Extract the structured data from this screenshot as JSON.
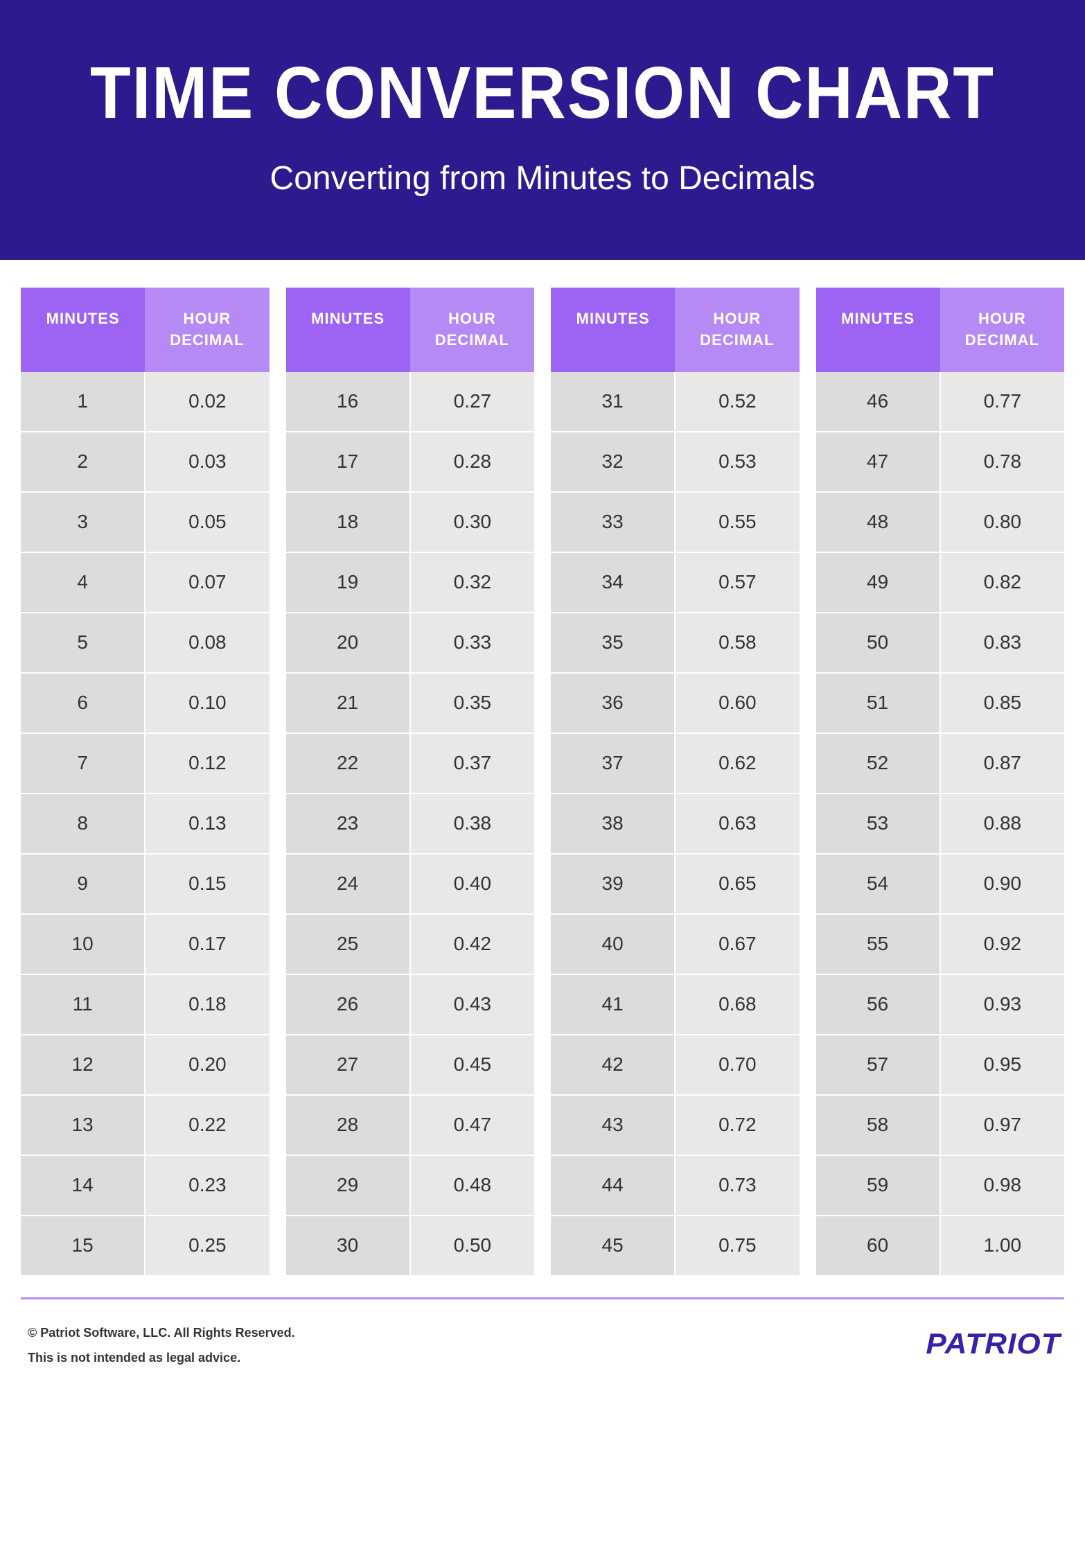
{
  "header": {
    "title": "TIME CONVERSION CHART",
    "subtitle": "Converting from Minutes to Decimals"
  },
  "colors": {
    "header_bg": "#2e1a8f",
    "minutes_header_bg": "#9d63f2",
    "decimal_header_bg": "#b68af5",
    "minutes_cell_bg": "#dcdcdc",
    "decimal_cell_bg": "#e8e8e8",
    "text_white": "#ffffff",
    "text_dark": "#333333",
    "footer_border": "#b68af5",
    "brand_color": "#3a1fa8",
    "page_bg": "#ffffff"
  },
  "typography": {
    "title_fontsize": 96,
    "subtitle_fontsize": 48,
    "header_cell_fontsize": 22,
    "body_cell_fontsize": 28,
    "footer_fontsize": 18,
    "brand_fontsize": 42
  },
  "table": {
    "type": "table",
    "col_header_minutes": "MINUTES",
    "col_header_decimal": "HOUR DECIMAL",
    "groups": [
      [
        {
          "m": "1",
          "d": "0.02"
        },
        {
          "m": "2",
          "d": "0.03"
        },
        {
          "m": "3",
          "d": "0.05"
        },
        {
          "m": "4",
          "d": "0.07"
        },
        {
          "m": "5",
          "d": "0.08"
        },
        {
          "m": "6",
          "d": "0.10"
        },
        {
          "m": "7",
          "d": "0.12"
        },
        {
          "m": "8",
          "d": "0.13"
        },
        {
          "m": "9",
          "d": "0.15"
        },
        {
          "m": "10",
          "d": "0.17"
        },
        {
          "m": "11",
          "d": "0.18"
        },
        {
          "m": "12",
          "d": "0.20"
        },
        {
          "m": "13",
          "d": "0.22"
        },
        {
          "m": "14",
          "d": "0.23"
        },
        {
          "m": "15",
          "d": "0.25"
        }
      ],
      [
        {
          "m": "16",
          "d": "0.27"
        },
        {
          "m": "17",
          "d": "0.28"
        },
        {
          "m": "18",
          "d": "0.30"
        },
        {
          "m": "19",
          "d": "0.32"
        },
        {
          "m": "20",
          "d": "0.33"
        },
        {
          "m": "21",
          "d": "0.35"
        },
        {
          "m": "22",
          "d": "0.37"
        },
        {
          "m": "23",
          "d": "0.38"
        },
        {
          "m": "24",
          "d": "0.40"
        },
        {
          "m": "25",
          "d": "0.42"
        },
        {
          "m": "26",
          "d": "0.43"
        },
        {
          "m": "27",
          "d": "0.45"
        },
        {
          "m": "28",
          "d": "0.47"
        },
        {
          "m": "29",
          "d": "0.48"
        },
        {
          "m": "30",
          "d": "0.50"
        }
      ],
      [
        {
          "m": "31",
          "d": "0.52"
        },
        {
          "m": "32",
          "d": "0.53"
        },
        {
          "m": "33",
          "d": "0.55"
        },
        {
          "m": "34",
          "d": "0.57"
        },
        {
          "m": "35",
          "d": "0.58"
        },
        {
          "m": "36",
          "d": "0.60"
        },
        {
          "m": "37",
          "d": "0.62"
        },
        {
          "m": "38",
          "d": "0.63"
        },
        {
          "m": "39",
          "d": "0.65"
        },
        {
          "m": "40",
          "d": "0.67"
        },
        {
          "m": "41",
          "d": "0.68"
        },
        {
          "m": "42",
          "d": "0.70"
        },
        {
          "m": "43",
          "d": "0.72"
        },
        {
          "m": "44",
          "d": "0.73"
        },
        {
          "m": "45",
          "d": "0.75"
        }
      ],
      [
        {
          "m": "46",
          "d": "0.77"
        },
        {
          "m": "47",
          "d": "0.78"
        },
        {
          "m": "48",
          "d": "0.80"
        },
        {
          "m": "49",
          "d": "0.82"
        },
        {
          "m": "50",
          "d": "0.83"
        },
        {
          "m": "51",
          "d": "0.85"
        },
        {
          "m": "52",
          "d": "0.87"
        },
        {
          "m": "53",
          "d": "0.88"
        },
        {
          "m": "54",
          "d": "0.90"
        },
        {
          "m": "55",
          "d": "0.92"
        },
        {
          "m": "56",
          "d": "0.93"
        },
        {
          "m": "57",
          "d": "0.95"
        },
        {
          "m": "58",
          "d": "0.97"
        },
        {
          "m": "59",
          "d": "0.98"
        },
        {
          "m": "60",
          "d": "1.00"
        }
      ]
    ]
  },
  "footer": {
    "copyright": "© Patriot Software, LLC. All Rights Reserved.",
    "disclaimer": "This is not intended as legal advice.",
    "brand": "PATRIOT"
  }
}
